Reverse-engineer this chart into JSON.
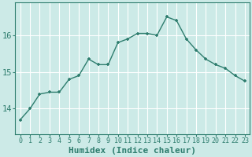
{
  "x": [
    0,
    1,
    2,
    3,
    4,
    5,
    6,
    7,
    8,
    9,
    10,
    11,
    12,
    13,
    14,
    15,
    16,
    17,
    18,
    19,
    20,
    21,
    22,
    23
  ],
  "y": [
    13.7,
    14.0,
    14.4,
    14.45,
    14.45,
    14.8,
    14.9,
    15.35,
    15.2,
    15.2,
    15.8,
    15.9,
    16.05,
    16.05,
    16.0,
    16.5,
    16.4,
    15.9,
    15.6,
    15.35,
    15.2,
    15.1,
    14.9,
    14.75
  ],
  "line_color": "#2e7d6e",
  "marker": "+",
  "bg_color": "#cceae7",
  "grid_color": "#ffffff",
  "xlabel": "Humidex (Indice chaleur)",
  "yticks": [
    14,
    15,
    16
  ],
  "ylim": [
    13.3,
    16.9
  ],
  "xlim": [
    -0.5,
    23.5
  ],
  "xlabel_fontsize": 8,
  "tick_fontsize": 7.5
}
